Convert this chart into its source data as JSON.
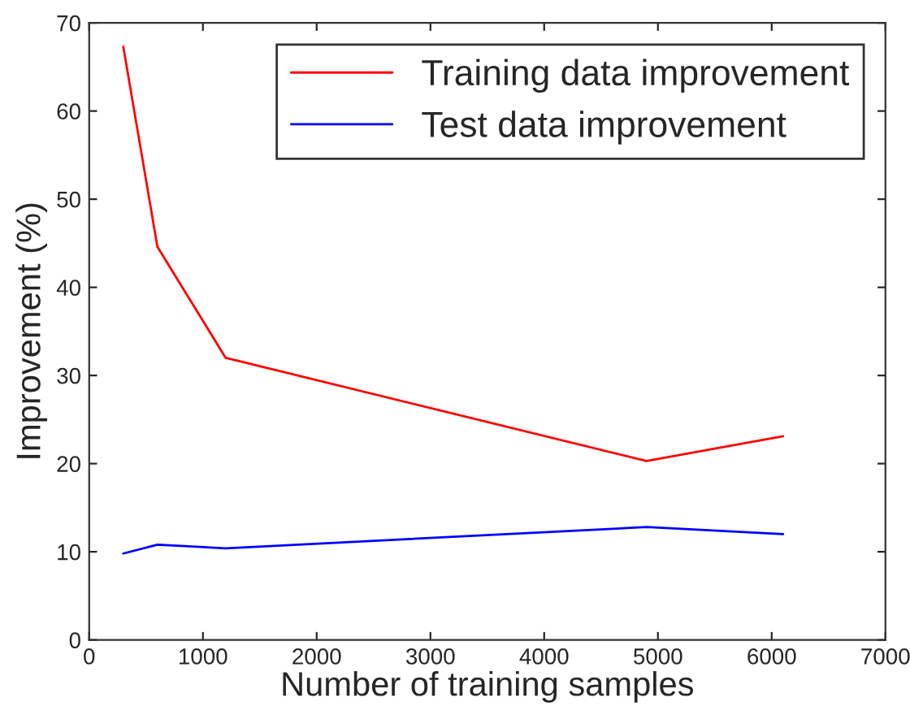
{
  "chart_data": {
    "type": "line",
    "xlabel": "Number of training samples",
    "ylabel": "Improvement (%)",
    "x": [
      300,
      600,
      1200,
      4900,
      6100
    ],
    "series": [
      {
        "name": "Training data improvement",
        "color": "#ff0000",
        "values": [
          67.3,
          44.6,
          32.0,
          20.3,
          23.1
        ]
      },
      {
        "name": "Test data improvement",
        "color": "#0000ff",
        "values": [
          9.8,
          10.8,
          10.4,
          12.8,
          12.0
        ]
      }
    ],
    "xlim": [
      0,
      7000
    ],
    "xticks": [
      0,
      1000,
      2000,
      3000,
      4000,
      5000,
      6000,
      7000
    ],
    "ylim": [
      0,
      70
    ],
    "yticks": [
      0,
      10,
      20,
      30,
      40,
      50,
      60,
      70
    ],
    "legend": "top right",
    "grid": false
  }
}
